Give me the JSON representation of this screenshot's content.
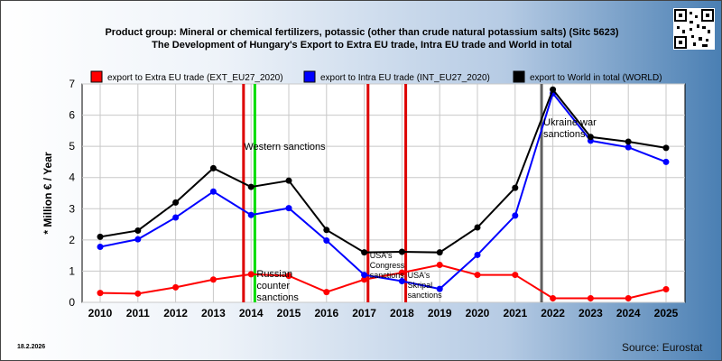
{
  "title_line1": "Product group: Mineral or chemical fertilizers, potassic (other than crude natural potassium salts) (Sitc 5623)",
  "title_line2": "The Development of Hungary's Export to Extra EU trade, Intra EU trade and World in total",
  "date": "18.2.2026",
  "source": "Source: Eurostat",
  "colors": {
    "extra": "#ff0000",
    "intra": "#0000ff",
    "world": "#000000",
    "sanction_red": "#dd0000",
    "sanction_green": "#00dd00",
    "war_gray": "#606060"
  },
  "chart_data": {
    "type": "line",
    "x": [
      2010,
      2011,
      2012,
      2013,
      2014,
      2015,
      2016,
      2017,
      2018,
      2019,
      2020,
      2021,
      2022,
      2023,
      2024,
      2025
    ],
    "ylabel": "* Million € / Year",
    "ylim": [
      0,
      7
    ],
    "yticks": [
      0,
      1,
      2,
      3,
      4,
      5,
      6,
      7
    ],
    "grid": true,
    "legend_position": "top",
    "series": [
      {
        "name": "export to Extra EU trade (EXT_EU27_2020)",
        "key": "extra",
        "values": [
          0.3,
          0.28,
          0.48,
          0.73,
          0.9,
          0.85,
          0.33,
          0.73,
          0.95,
          1.2,
          0.88,
          0.88,
          0.13,
          0.13,
          0.13,
          0.42
        ]
      },
      {
        "name": "export to Intra EU trade (INT_EU27_2020)",
        "key": "intra",
        "values": [
          1.78,
          2.02,
          2.72,
          3.55,
          2.8,
          3.02,
          1.98,
          0.88,
          0.68,
          0.43,
          1.52,
          2.78,
          6.7,
          5.18,
          4.97,
          4.5
        ]
      },
      {
        "name": "export to World in total (WORLD)",
        "key": "world",
        "values": [
          2.1,
          2.3,
          3.2,
          4.3,
          3.7,
          3.9,
          2.32,
          1.6,
          1.62,
          1.6,
          2.4,
          3.67,
          6.82,
          5.3,
          5.15,
          4.95
        ]
      }
    ],
    "events": [
      {
        "x": 2013.8,
        "color": "sanction_red",
        "label": ""
      },
      {
        "x": 2014.1,
        "color": "sanction_green",
        "label": "Western sanctions"
      },
      {
        "x": 2014.1,
        "color": "none",
        "label": "Russian counter sanctions"
      },
      {
        "x": 2017.1,
        "color": "sanction_red",
        "label": "USA's Congress sanctions"
      },
      {
        "x": 2018.1,
        "color": "sanction_red",
        "label": "USA's Skripal sanctions"
      },
      {
        "x": 2021.7,
        "color": "war_gray",
        "label": "Ukraine war sanctions"
      }
    ]
  }
}
